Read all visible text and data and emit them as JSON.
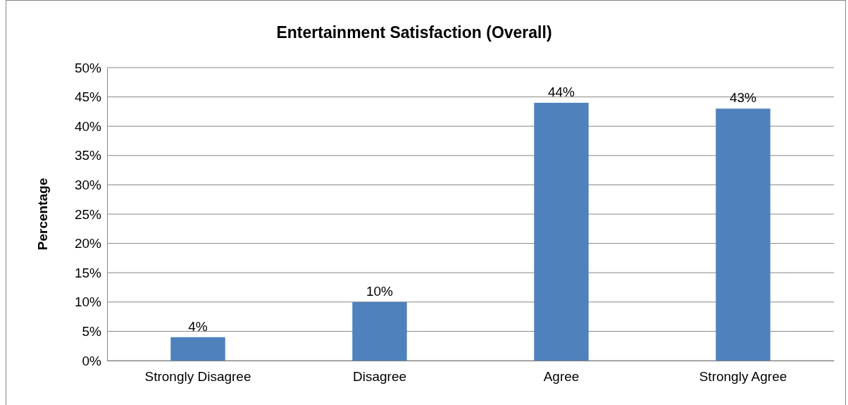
{
  "chart_data": {
    "type": "bar",
    "title": "Entertainment Satisfaction (Overall)",
    "ylabel": "Percentage",
    "categories": [
      "Strongly Disagree",
      "Disagree",
      "Agree",
      "Strongly Agree"
    ],
    "values": [
      4,
      10,
      44,
      43
    ],
    "color": "#4f81bd",
    "value_labels": [
      "4%",
      "10%",
      "44%",
      "43%"
    ],
    "ylim": [
      0,
      50
    ],
    "yticks": [
      {
        "value": 0,
        "label": "0%"
      },
      {
        "value": 5,
        "label": "5%"
      },
      {
        "value": 10,
        "label": "10%"
      },
      {
        "value": 15,
        "label": "15%"
      },
      {
        "value": 20,
        "label": "20%"
      },
      {
        "value": 25,
        "label": "25%"
      },
      {
        "value": 30,
        "label": "30%"
      },
      {
        "value": 35,
        "label": "35%"
      },
      {
        "value": 40,
        "label": "40%"
      },
      {
        "value": 45,
        "label": "45%"
      },
      {
        "value": 50,
        "label": "50%"
      }
    ],
    "grid": "y"
  }
}
